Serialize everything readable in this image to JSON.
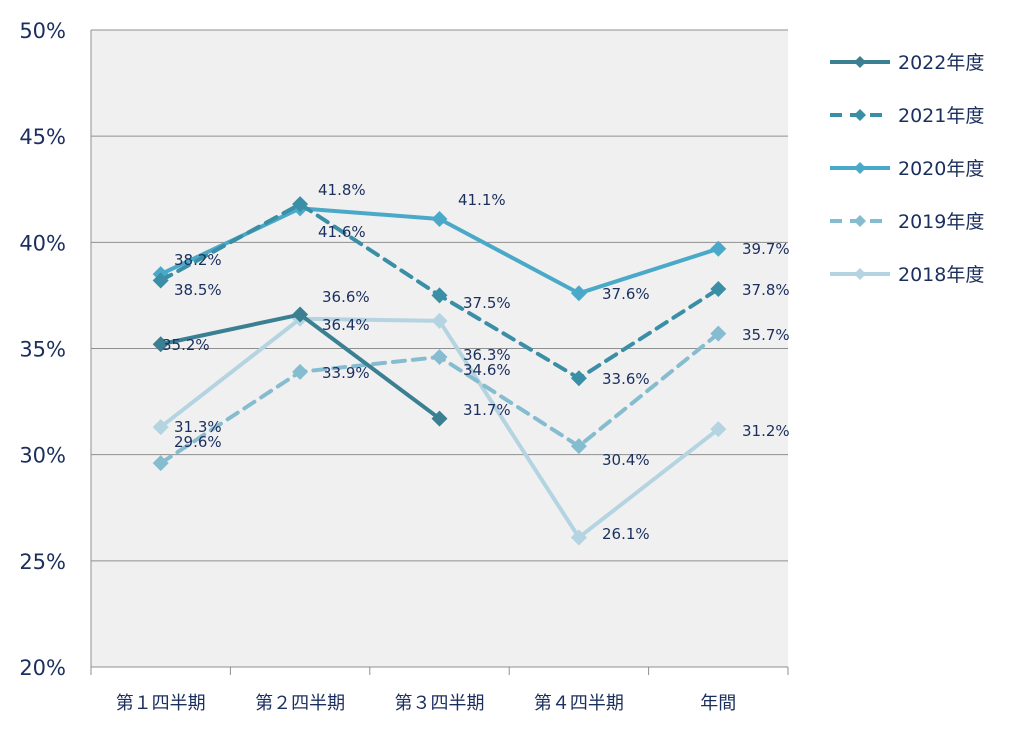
{
  "chart_data": {
    "type": "line",
    "categories": [
      "第１四半期",
      "第２四半期",
      "第３四半期",
      "第４四半期",
      "年間"
    ],
    "ylim": [
      0.2,
      0.5
    ],
    "y_ticks": [
      "20%",
      "25%",
      "30%",
      "35%",
      "40%",
      "45%",
      "50%"
    ],
    "grid": true,
    "legend_position": "right",
    "series": [
      {
        "name": "2022年度",
        "values": [
          35.2,
          36.6,
          31.7,
          null,
          null
        ],
        "labels": [
          "35.2%",
          "36.6%",
          "31.7%",
          "",
          ""
        ],
        "color": "#3b7f93",
        "dashed": false
      },
      {
        "name": "2021年度",
        "values": [
          38.2,
          41.8,
          37.5,
          33.6,
          37.8
        ],
        "labels": [
          "38.2%",
          "41.8%",
          "37.5%",
          "33.6%",
          "37.8%"
        ],
        "color": "#3a8fa6",
        "dashed": true
      },
      {
        "name": "2020年度",
        "values": [
          38.5,
          41.6,
          41.1,
          37.6,
          39.7
        ],
        "labels": [
          "38.5%",
          "41.6%",
          "41.1%",
          "37.6%",
          "39.7%"
        ],
        "color": "#4aa9c8",
        "dashed": false
      },
      {
        "name": "2019年度",
        "values": [
          29.6,
          33.9,
          34.6,
          30.4,
          35.7
        ],
        "labels": [
          "29.6%",
          "33.9%",
          "34.6%",
          "30.4%",
          "35.7%"
        ],
        "color": "#86bcd0",
        "dashed": true
      },
      {
        "name": "2018年度",
        "values": [
          31.3,
          36.4,
          36.3,
          26.1,
          31.2
        ],
        "labels": [
          "31.3%",
          "36.4%",
          "36.3%",
          "26.1%",
          "31.2%"
        ],
        "color": "#b3d4e0",
        "dashed": false
      }
    ]
  }
}
